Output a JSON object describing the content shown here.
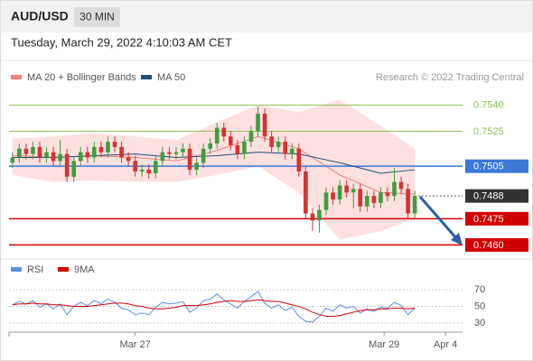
{
  "header": {
    "symbol": "AUD/USD",
    "timeframe": "30 MIN",
    "timestamp": "Tuesday, March 29, 2022 4:10:03 AM CET"
  },
  "chart_data": [
    {
      "type": "candlestick",
      "source": "Research © 2022 Trading Central",
      "xlim": [
        -0.5,
        66
      ],
      "ylim": [
        0.7453,
        0.7551
      ],
      "up_color": "#3f9e3f",
      "down_color": "#d93030",
      "open": [
        0.7507,
        0.751,
        0.7515,
        0.7512,
        0.7516,
        0.751,
        0.7513,
        0.7508,
        0.7512,
        0.7499,
        0.7508,
        0.7513,
        0.751,
        0.7516,
        0.7513,
        0.7519,
        0.7516,
        0.751,
        0.7508,
        0.7502,
        0.7503,
        0.7501,
        0.7508,
        0.7513,
        0.7512,
        0.7513,
        0.7515,
        0.7503,
        0.7507,
        0.7515,
        0.7518,
        0.7527,
        0.7522,
        0.7517,
        0.7512,
        0.7519,
        0.7525,
        0.7535,
        0.7522,
        0.7516,
        0.7519,
        0.7512,
        0.7515,
        0.7502,
        0.7478,
        0.7474,
        0.748,
        0.749,
        0.7486,
        0.7494,
        0.749,
        0.7492,
        0.7482,
        0.7488,
        0.7484,
        0.749,
        0.7488,
        0.7496,
        0.7492,
        0.7478
      ],
      "high": [
        0.7513,
        0.7518,
        0.7518,
        0.7519,
        0.7519,
        0.7516,
        0.7516,
        0.752,
        0.7515,
        0.7511,
        0.7516,
        0.7516,
        0.7519,
        0.7519,
        0.7522,
        0.7522,
        0.7519,
        0.7513,
        0.7511,
        0.7506,
        0.7506,
        0.7511,
        0.7516,
        0.7516,
        0.7516,
        0.7518,
        0.7518,
        0.751,
        0.7518,
        0.7521,
        0.753,
        0.753,
        0.7525,
        0.752,
        0.7522,
        0.7528,
        0.7539,
        0.7538,
        0.7525,
        0.7522,
        0.7522,
        0.7518,
        0.7518,
        0.7505,
        0.7481,
        0.7483,
        0.7493,
        0.7493,
        0.7497,
        0.7497,
        0.7495,
        0.7495,
        0.7491,
        0.7491,
        0.7493,
        0.7493,
        0.7504,
        0.7499,
        0.7495,
        0.7491
      ],
      "low": [
        0.7504,
        0.7507,
        0.7509,
        0.7509,
        0.7507,
        0.7507,
        0.7505,
        0.7505,
        0.7496,
        0.7496,
        0.7505,
        0.7507,
        0.7507,
        0.751,
        0.751,
        0.7513,
        0.7507,
        0.7505,
        0.7499,
        0.7499,
        0.7498,
        0.7498,
        0.7505,
        0.7509,
        0.7509,
        0.751,
        0.75,
        0.75,
        0.7504,
        0.7512,
        0.7515,
        0.7519,
        0.7514,
        0.7509,
        0.7509,
        0.7516,
        0.7522,
        0.7519,
        0.7513,
        0.7513,
        0.7509,
        0.7509,
        0.7499,
        0.7475,
        0.7468,
        0.7467,
        0.7477,
        0.7483,
        0.7483,
        0.7487,
        0.7481,
        0.7479,
        0.7479,
        0.7481,
        0.7481,
        0.7485,
        0.7485,
        0.7489,
        0.7475,
        0.7475
      ],
      "close": [
        0.751,
        0.7515,
        0.7512,
        0.7516,
        0.751,
        0.7513,
        0.7508,
        0.7512,
        0.7499,
        0.7508,
        0.7513,
        0.751,
        0.7516,
        0.7513,
        0.7519,
        0.7516,
        0.751,
        0.7508,
        0.7502,
        0.7503,
        0.7501,
        0.7508,
        0.7513,
        0.7512,
        0.7513,
        0.7515,
        0.7503,
        0.7507,
        0.7515,
        0.7518,
        0.7527,
        0.7522,
        0.7517,
        0.7512,
        0.7519,
        0.7525,
        0.7535,
        0.7522,
        0.7516,
        0.7519,
        0.7512,
        0.7515,
        0.7502,
        0.7478,
        0.7474,
        0.748,
        0.749,
        0.7486,
        0.7494,
        0.749,
        0.7492,
        0.7482,
        0.7488,
        0.7484,
        0.749,
        0.7488,
        0.7496,
        0.7492,
        0.7478,
        0.7488
      ],
      "bands": {
        "name": "MA 20 + Bollinger Bands",
        "color": "#f08080",
        "fill": "#fde0e0",
        "x": [
          0,
          6,
          12,
          18,
          24,
          30,
          36,
          42,
          48,
          54,
          59
        ],
        "upper": [
          0.7521,
          0.7522,
          0.7524,
          0.7522,
          0.752,
          0.753,
          0.754,
          0.7536,
          0.7543,
          0.7528,
          0.7515
        ],
        "ma": [
          0.7511,
          0.751,
          0.7511,
          0.751,
          0.7508,
          0.7514,
          0.7522,
          0.7515,
          0.75,
          0.749,
          0.7489
        ],
        "lower": [
          0.75,
          0.7496,
          0.7497,
          0.7496,
          0.7496,
          0.75,
          0.7505,
          0.749,
          0.7463,
          0.7468,
          0.7475
        ]
      },
      "series": [
        {
          "name": "MA 50",
          "color": "#1f4e79",
          "x": [
            0,
            6,
            12,
            18,
            24,
            30,
            36,
            42,
            48,
            54,
            59
          ],
          "values": [
            0.751,
            0.751,
            0.7511,
            0.7512,
            0.751,
            0.7511,
            0.7513,
            0.7512,
            0.7507,
            0.7501,
            0.7503
          ]
        }
      ],
      "levels": [
        {
          "value": 0.754,
          "label": "0.7540",
          "color": "#8cc152",
          "box": false,
          "style": "solid"
        },
        {
          "value": 0.7525,
          "label": "0.7525",
          "color": "#8cc152",
          "box": false,
          "style": "solid"
        },
        {
          "value": 0.7505,
          "label": "0.7505",
          "color": "#3b78d8",
          "box": true,
          "style": "solid"
        },
        {
          "value": 0.7488,
          "label": "0.7488",
          "color": "#333333",
          "box": true,
          "style": "dotted"
        },
        {
          "value": 0.7475,
          "label": "0.7475",
          "color": "#d40000",
          "box": true,
          "style": "solid"
        },
        {
          "value": 0.746,
          "label": "0.7460",
          "color": "#d40000",
          "box": true,
          "style": "solid"
        }
      ]
    },
    {
      "type": "line",
      "xlim": [
        -0.5,
        66
      ],
      "ylim": [
        20,
        79
      ],
      "yticks": [
        70,
        50,
        30
      ],
      "xticks": [
        {
          "value": 18,
          "label": "Mar 27"
        },
        {
          "value": 54.5,
          "label": "Mar 29"
        },
        {
          "value": 63.5,
          "label": "Apr 4"
        }
      ],
      "series": [
        {
          "name": "RSI",
          "color": "#5b8def",
          "values": [
            52,
            56,
            53,
            57,
            49,
            53,
            47,
            53,
            40,
            50,
            55,
            51,
            57,
            53,
            59,
            55,
            48,
            46,
            40,
            42,
            40,
            49,
            55,
            53,
            54,
            56,
            43,
            48,
            57,
            59,
            65,
            58,
            53,
            48,
            56,
            62,
            68,
            54,
            48,
            52,
            45,
            49,
            38,
            32,
            31,
            38,
            48,
            44,
            52,
            48,
            50,
            42,
            47,
            44,
            49,
            48,
            55,
            51,
            40,
            48
          ]
        },
        {
          "name": "9MA",
          "color": "#d40000",
          "values": [
            52,
            53,
            53,
            54,
            53,
            53,
            52,
            52,
            51,
            50,
            50,
            50,
            51,
            52,
            53,
            54,
            54,
            53,
            51,
            50,
            48,
            47,
            47,
            48,
            49,
            51,
            51,
            51,
            52,
            53,
            55,
            56,
            57,
            56,
            56,
            57,
            58,
            57,
            56,
            56,
            54,
            52,
            50,
            47,
            43,
            40,
            38,
            38,
            39,
            41,
            43,
            45,
            46,
            46,
            47,
            47,
            48,
            48,
            47,
            48
          ]
        }
      ]
    }
  ]
}
